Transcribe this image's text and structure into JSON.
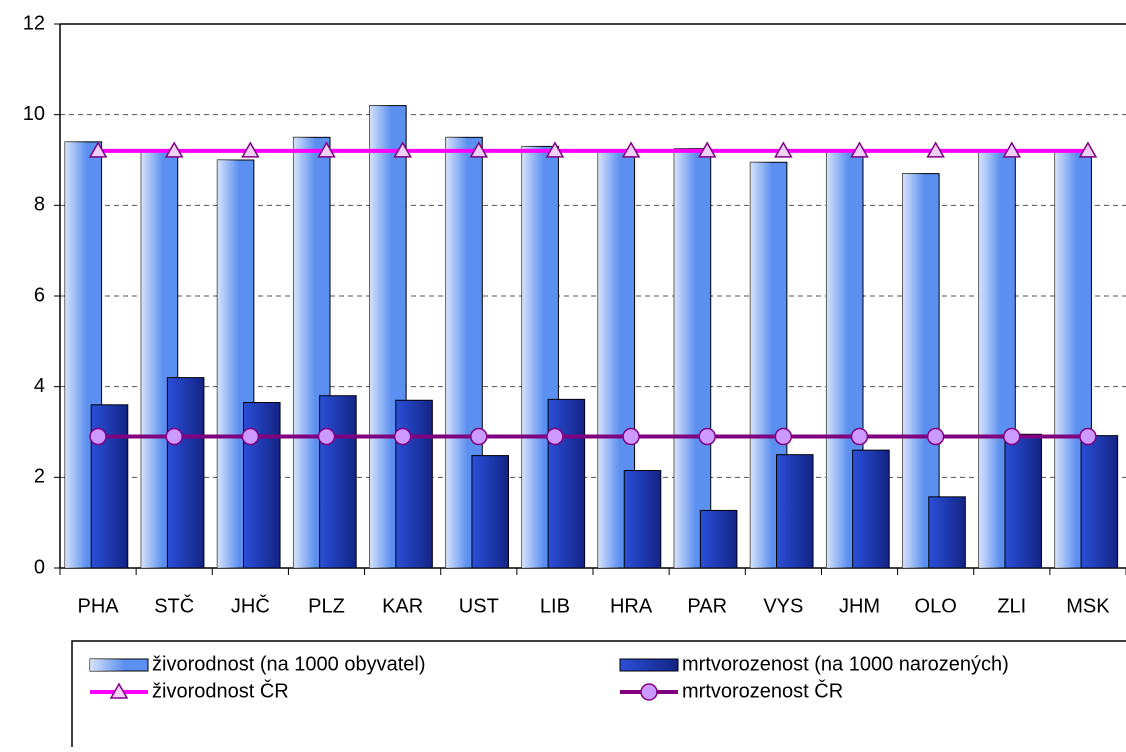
{
  "chart_data": {
    "type": "bar",
    "categories": [
      "PHA",
      "STČ",
      "JHČ",
      "PLZ",
      "KAR",
      "UST",
      "LIB",
      "HRA",
      "PAR",
      "VYS",
      "JHM",
      "OLO",
      "ZLI",
      "MSK"
    ],
    "series": [
      {
        "name": "živorodnost (na 1000 obyvatel)",
        "type": "bar",
        "color": "#5b8ff0",
        "values": [
          9.4,
          9.2,
          9.0,
          9.5,
          10.2,
          9.5,
          9.3,
          9.2,
          9.25,
          8.95,
          9.2,
          8.7,
          9.2,
          9.2
        ]
      },
      {
        "name": "mrtvorozenost (na 1000 narozených)",
        "type": "bar",
        "color": "#2a4fd8",
        "values": [
          3.6,
          4.2,
          3.65,
          3.8,
          3.7,
          2.48,
          3.72,
          2.15,
          1.27,
          2.5,
          2.6,
          1.57,
          2.95,
          2.92
        ]
      },
      {
        "name": "živorodnost ČR",
        "type": "line",
        "marker": "triangle",
        "color": "#ff00ff",
        "values": [
          9.2,
          9.2,
          9.2,
          9.2,
          9.2,
          9.2,
          9.2,
          9.2,
          9.2,
          9.2,
          9.2,
          9.2,
          9.2,
          9.2
        ]
      },
      {
        "name": "mrtvorozenost ČR",
        "type": "line",
        "marker": "circle",
        "color": "#800080",
        "values": [
          2.9,
          2.9,
          2.9,
          2.9,
          2.9,
          2.9,
          2.9,
          2.9,
          2.9,
          2.9,
          2.9,
          2.9,
          2.9,
          2.9
        ]
      }
    ],
    "ylim": [
      0,
      12
    ],
    "yticks": [
      0,
      2,
      4,
      6,
      8,
      10,
      12
    ],
    "grid": true
  }
}
